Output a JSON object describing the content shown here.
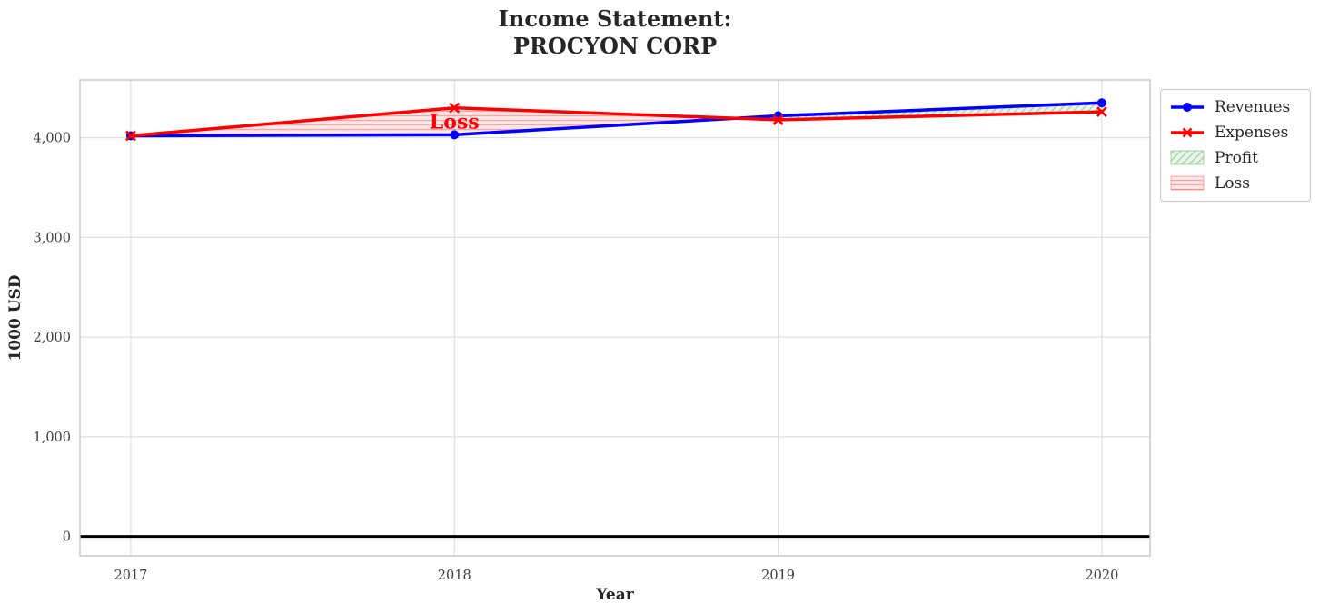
{
  "title": {
    "line1": "Income Statement:",
    "line2": "PROCYON CORP"
  },
  "chart_data": {
    "type": "line",
    "title": "Income Statement:\nPROCYON CORP",
    "x": [
      2017,
      2018,
      2019,
      2020
    ],
    "x_tick_labels": [
      "2017",
      "2018",
      "2019",
      "2020"
    ],
    "series": [
      {
        "name": "Revenues",
        "values": [
          4020,
          4030,
          4220,
          4350
        ],
        "color": "#0000ff",
        "marker": "circle",
        "linewidth": 3.5
      },
      {
        "name": "Expenses",
        "values": [
          4020,
          4300,
          4180,
          4260
        ],
        "color": "#ff0000",
        "marker": "x",
        "linewidth": 3.5
      }
    ],
    "fills": [
      {
        "name": "Profit",
        "rule": "revenues_above_expenses",
        "base_color": "rgba(44,160,44,0.10)",
        "hatch_color": "rgba(44,160,44,0.40)",
        "hatch": "diagonal"
      },
      {
        "name": "Loss",
        "rule": "expenses_above_revenues",
        "base_color": "rgba(255,0,0,0.09)",
        "hatch_color": "rgba(255,0,0,0.30)",
        "hatch": "horizontal"
      }
    ],
    "xlabel": "Year",
    "ylabel": "1000 USD",
    "y_ticks": [
      0,
      1000,
      2000,
      3000,
      4000
    ],
    "y_tick_labels": [
      "0",
      "1,000",
      "2,000",
      "3,000",
      "4,000"
    ],
    "xlim": [
      2016.843,
      2020.149
    ],
    "ylim": [
      -195,
      4580
    ],
    "grid": true,
    "legend_position": "upper right, outside plot",
    "zero_line": {
      "y": 0,
      "color": "#000000",
      "width": 3
    },
    "annotation": {
      "text": "Loss",
      "x": 2018,
      "y": 4165,
      "color": "#ff0000"
    }
  },
  "legend": {
    "items": [
      {
        "label": "Revenues"
      },
      {
        "label": "Expenses"
      },
      {
        "label": "Profit"
      },
      {
        "label": "Loss"
      }
    ]
  },
  "colors": {
    "background": "#ffffff",
    "grid": "#d9d9d9",
    "border": "#c8c8c8",
    "text": "#262626",
    "tick_text": "#3b3b3b"
  }
}
